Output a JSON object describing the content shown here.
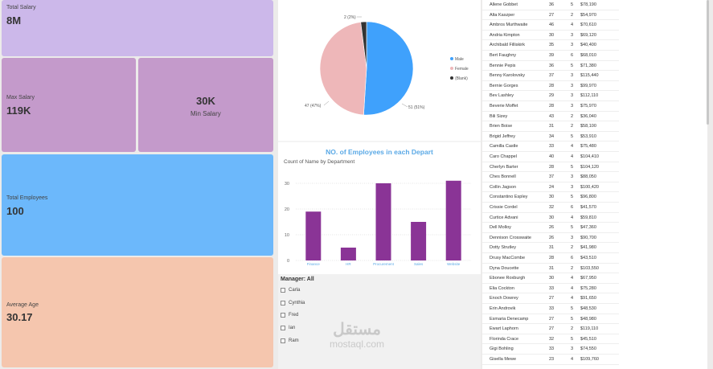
{
  "kpis": {
    "total_salary": {
      "label": "Total Salary",
      "value": "8M",
      "color": "#ccb8ea"
    },
    "max_salary": {
      "label": "Max Salary",
      "value": "119K",
      "color": "#c49acb"
    },
    "min_salary": {
      "label": "Min Salary",
      "value": "30K",
      "color": "#c49acb"
    },
    "total_employees": {
      "label": "Total Employees",
      "value": "100",
      "color": "#6cb8fb"
    },
    "average_age": {
      "label": "Average Age",
      "value": "30.17",
      "color": "#f5c6ae"
    }
  },
  "pie": {
    "slice_labels": {
      "blank": "2 (2%)",
      "female": "47 (47%)",
      "male": "51 (51%)"
    },
    "legend": [
      {
        "name": "Male",
        "color": "#3fa1fc"
      },
      {
        "name": "Female",
        "color": "#eeb7b9"
      },
      {
        "name": "(Blank)",
        "color": "#333333"
      }
    ]
  },
  "chart_data": {
    "type": "bar",
    "title": "NO. of Employees in each Depart",
    "subtitle": "Count of Name by Department",
    "categories": [
      "Finance",
      "HR",
      "Procurement",
      "Sales",
      "Website"
    ],
    "values": [
      19,
      5,
      30,
      15,
      31
    ],
    "ylim": [
      0,
      35
    ],
    "yticks": [
      "0",
      "10",
      "20",
      "30"
    ],
    "bar_color": "#8a3496",
    "title_color": "#5aa9e6"
  },
  "slicer": {
    "title": "Manager: All",
    "items": [
      "Carla",
      "Cynthia",
      "Fred",
      "Ian",
      "Ram"
    ]
  },
  "table": {
    "rows": [
      [
        "Allene Gobbet",
        "36",
        "5",
        "$78,190"
      ],
      [
        "Alta Kaszper",
        "27",
        "2",
        "$54,970"
      ],
      [
        "Ambros Murthwaite",
        "46",
        "4",
        "$70,610"
      ],
      [
        "Andria Kimpton",
        "30",
        "3",
        "$69,120"
      ],
      [
        "Archibald Filliskirk",
        "35",
        "3",
        "$40,400"
      ],
      [
        "Bert Faughny",
        "39",
        "6",
        "$68,010"
      ],
      [
        "Bennie Pepis",
        "36",
        "5",
        "$71,380"
      ],
      [
        "Benny Karolovsky",
        "37",
        "3",
        "$115,440"
      ],
      [
        "Bernie Gorges",
        "28",
        "3",
        "$99,970"
      ],
      [
        "Bev Lashley",
        "29",
        "3",
        "$112,110"
      ],
      [
        "Beverie Moffet",
        "28",
        "3",
        "$75,970"
      ],
      [
        "Bili Sizey",
        "43",
        "2",
        "$36,040"
      ],
      [
        "Brien Boise",
        "31",
        "2",
        "$58,100"
      ],
      [
        "Brigid Jeffrey",
        "34",
        "5",
        "$53,910"
      ],
      [
        "Camilla Castle",
        "33",
        "4",
        "$75,480"
      ],
      [
        "Caro Chappel",
        "40",
        "4",
        "$104,410"
      ],
      [
        "Cherlyn Barter",
        "28",
        "5",
        "$104,120"
      ],
      [
        "Ches Bonnell",
        "37",
        "3",
        "$88,050"
      ],
      [
        "Collin Jagson",
        "24",
        "3",
        "$100,420"
      ],
      [
        "Constantino Espley",
        "30",
        "5",
        "$96,800"
      ],
      [
        "Crissie Cordel",
        "32",
        "6",
        "$41,570"
      ],
      [
        "Curtice Advani",
        "30",
        "4",
        "$59,810"
      ],
      [
        "Dell Molloy",
        "26",
        "5",
        "$47,360"
      ],
      [
        "Dennison Crosswaite",
        "26",
        "3",
        "$90,700"
      ],
      [
        "Dotty Strutley",
        "31",
        "2",
        "$41,980"
      ],
      [
        "Drusy MacCombe",
        "28",
        "6",
        "$43,510"
      ],
      [
        "Dyna Doucette",
        "31",
        "2",
        "$103,550"
      ],
      [
        "Ebonee Roxburgh",
        "30",
        "4",
        "$67,950"
      ],
      [
        "Elia Cockton",
        "33",
        "4",
        "$75,280"
      ],
      [
        "Enoch Dowrey",
        "27",
        "4",
        "$91,650"
      ],
      [
        "Erin Androvik",
        "33",
        "5",
        "$48,530"
      ],
      [
        "Esmaria Denecamp",
        "27",
        "5",
        "$48,980"
      ],
      [
        "Ewart Laphorn",
        "27",
        "2",
        "$119,110"
      ],
      [
        "Florinda Crace",
        "32",
        "5",
        "$45,510"
      ],
      [
        "Gigi Bohling",
        "33",
        "3",
        "$74,550"
      ],
      [
        "Gisella Mewe",
        "23",
        "4",
        "$109,760"
      ]
    ]
  },
  "watermark": {
    "arabic": "مستقل",
    "latin": "mostaql.com"
  }
}
